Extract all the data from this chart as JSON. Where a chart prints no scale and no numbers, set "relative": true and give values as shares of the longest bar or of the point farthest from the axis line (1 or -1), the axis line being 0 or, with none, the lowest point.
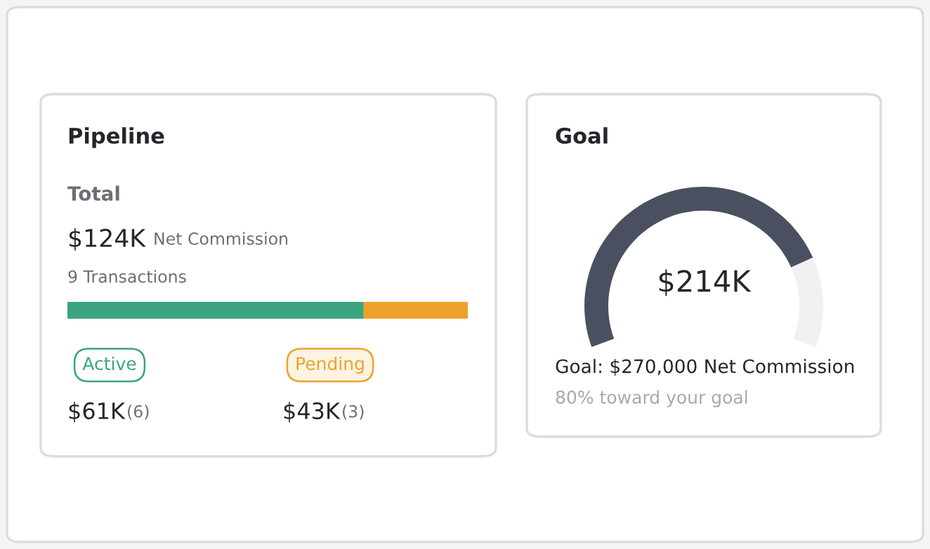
{
  "chart_data": [
    {
      "type": "bar",
      "title": "Pipeline",
      "orientation": "horizontal",
      "stacked": true,
      "relative": true,
      "categories": [
        null
      ],
      "series": [
        {
          "name": "Active",
          "color": "#3aa57e",
          "values": [
            0.74
          ]
        },
        {
          "name": "Pending",
          "color": "#eea22b",
          "values": [
            0.26
          ]
        }
      ],
      "annotations": [
        "Total",
        "$124K",
        "Net Commission",
        "9 Transactions",
        "$61K",
        "(6)",
        "$43K",
        "(3)"
      ]
    },
    {
      "type": "donut",
      "title": "Goal",
      "categories": [
        null,
        null
      ],
      "values": [
        80,
        20
      ],
      "colors": [
        "#4b5060",
        "#f1f1f2"
      ],
      "annotations": [
        "$214K",
        "Goal: $270,000 Net Commission",
        "80% toward your goal"
      ]
    }
  ]
}
